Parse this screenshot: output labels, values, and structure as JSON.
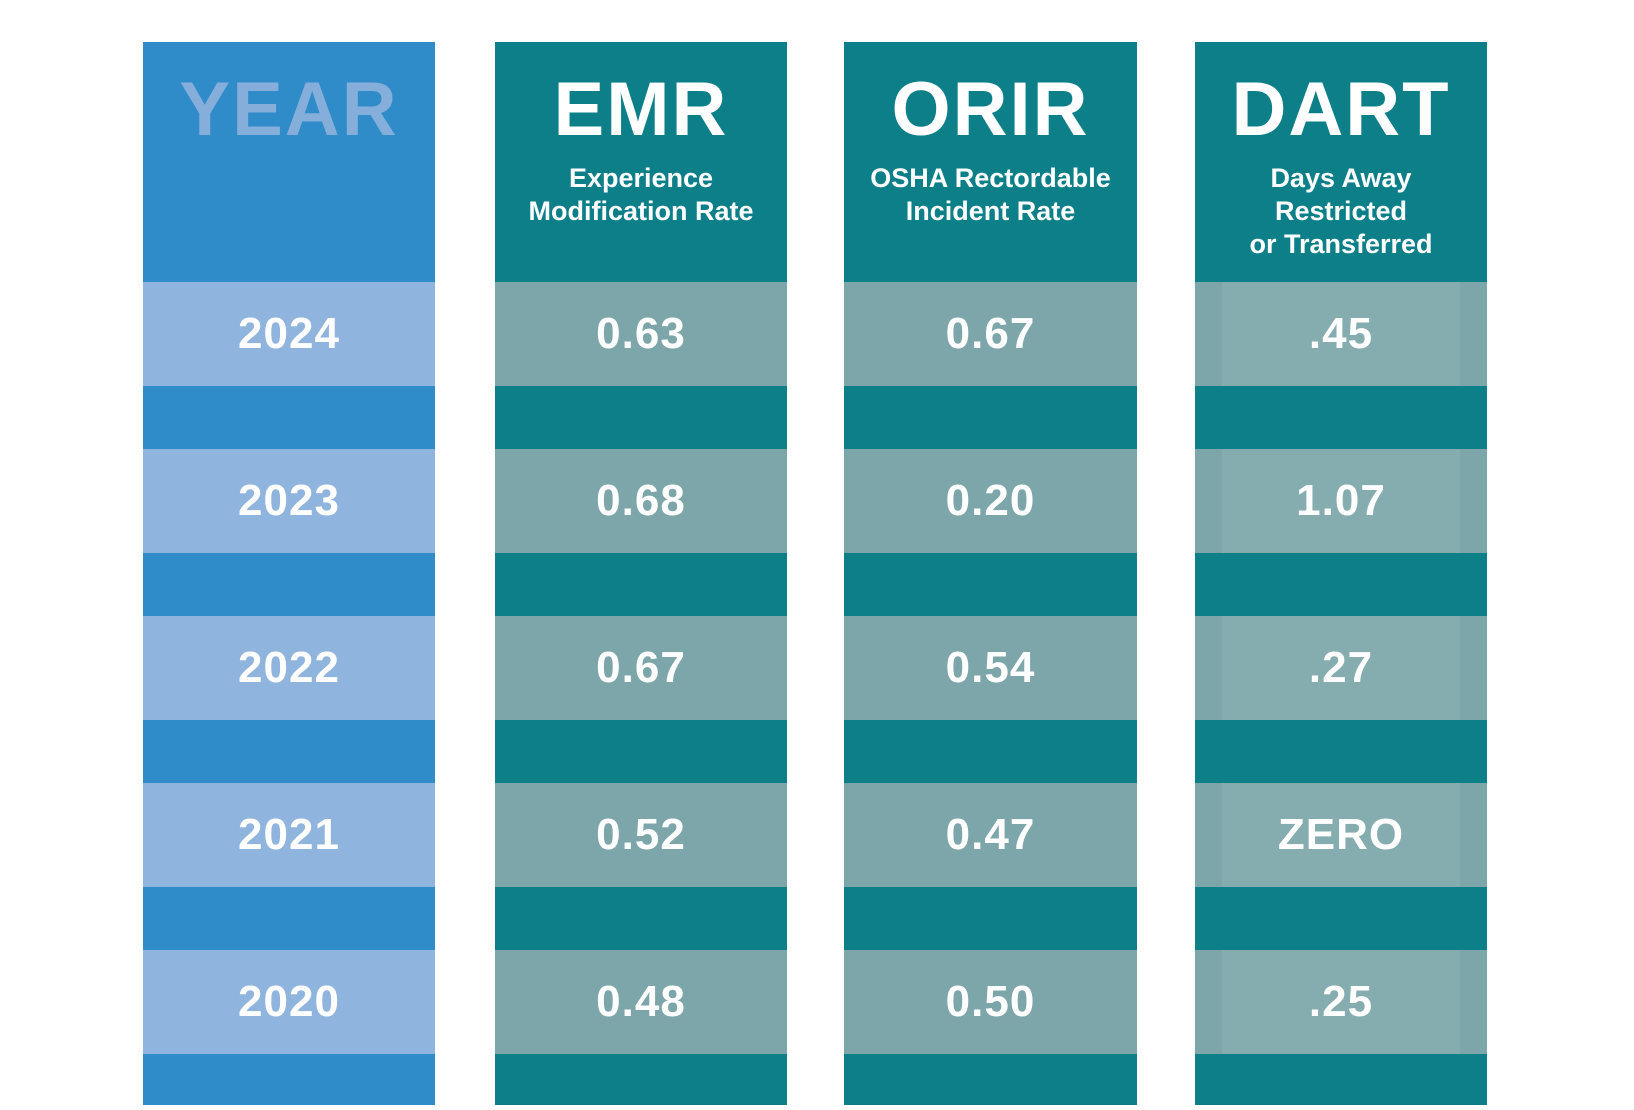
{
  "colors": {
    "page-bg": "#ffffff",
    "blue": "#308cc9",
    "blue-light": "#8fb4de",
    "year-text": "#85aeda",
    "teal": "#0d7f89",
    "teal-light": "#7ca6a9",
    "text": "#ffffff"
  },
  "chart_data": {
    "type": "table",
    "title": "",
    "columns": [
      {
        "title": "YEAR",
        "subtitle": "",
        "values": [
          "2024",
          "2023",
          "2022",
          "2021",
          "2020"
        ]
      },
      {
        "title": "EMR",
        "subtitle": "Experience\nModification Rate",
        "values": [
          "0.63",
          "0.68",
          "0.67",
          "0.52",
          "0.48"
        ]
      },
      {
        "title": "ORIR",
        "subtitle": "OSHA Rectordable\nIncident Rate",
        "values": [
          "0.67",
          "0.20",
          "0.54",
          "0.47",
          "0.50"
        ]
      },
      {
        "title": "DART",
        "subtitle": "Days Away\nRestricted\nor Transferred",
        "values": [
          ".45",
          "1.07",
          ".27",
          "ZERO",
          ".25"
        ]
      }
    ]
  }
}
